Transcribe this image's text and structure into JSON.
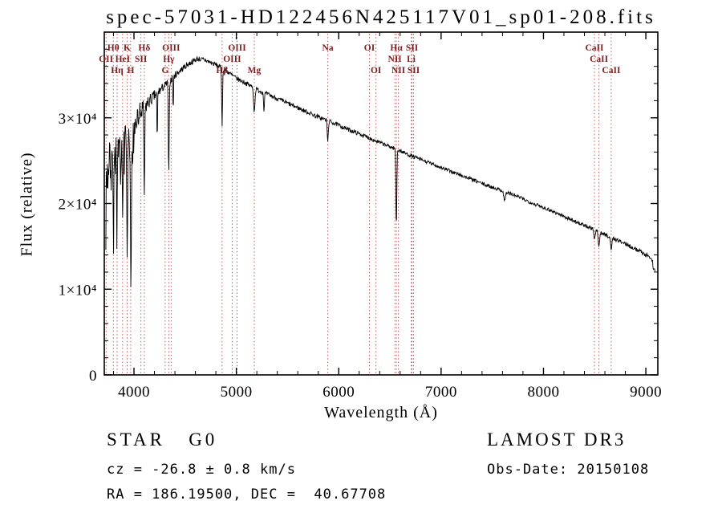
{
  "footer": {
    "object_class": "STAR   G0",
    "survey": "LAMOST DR3",
    "cz": "cz = -26.8 ± 0.8 km/s",
    "obs_date": "Obs-Date: 20150108",
    "coords": "RA = 186.19500, DEC =  40.67708"
  },
  "chart_data": {
    "type": "line",
    "title": "spec-57031-HD122456N425117V01_sp01-208.fits",
    "xlabel": "Wavelength (Å)",
    "ylabel": "Flux (relative)",
    "xlim": [
      3710,
      9117
    ],
    "ylim": [
      0,
      40000
    ],
    "xticks": [
      4000,
      5000,
      6000,
      7000,
      8000,
      9000
    ],
    "x_minor_step": 200,
    "yticks": [
      0,
      10000,
      20000,
      30000
    ],
    "ytick_labels": [
      "0",
      "1×10⁴",
      "2×10⁴",
      "3×10⁴"
    ],
    "y_minor_step": 2000,
    "grid": false,
    "line_color": "#000000",
    "frame_color": "#000000",
    "marker_line_color": "#bb4a4a",
    "marker_label_color": "#7a1f1f",
    "spectral_lines": [
      {
        "label": "OII",
        "wavelength": 3727,
        "row": 2
      },
      {
        "label": "Hθ",
        "wavelength": 3798,
        "row": 1
      },
      {
        "label": "Hη",
        "wavelength": 3835,
        "row": 3
      },
      {
        "label": "HeI",
        "wavelength": 3889,
        "row": 2
      },
      {
        "label": "K",
        "wavelength": 3933,
        "row": 1
      },
      {
        "label": "H",
        "wavelength": 3968,
        "row": 3
      },
      {
        "label": "SII",
        "wavelength": 4068,
        "row": 2
      },
      {
        "label": "Hδ",
        "wavelength": 4101,
        "row": 1
      },
      {
        "label": "G",
        "wavelength": 4305,
        "row": 3
      },
      {
        "label": "Hγ",
        "wavelength": 4340,
        "row": 2
      },
      {
        "label": "OIII",
        "wavelength": 4363,
        "row": 1
      },
      {
        "label": "Hβ",
        "wavelength": 4861,
        "row": 3
      },
      {
        "label": "OIII",
        "wavelength": 4959,
        "row": 2
      },
      {
        "label": "OIII",
        "wavelength": 5007,
        "row": 1
      },
      {
        "label": "Mg",
        "wavelength": 5175,
        "row": 3
      },
      {
        "label": "Na",
        "wavelength": 5893,
        "row": 1
      },
      {
        "label": "OI",
        "wavelength": 6300,
        "row": 1
      },
      {
        "label": "OI",
        "wavelength": 6364,
        "row": 3
      },
      {
        "label": "NII",
        "wavelength": 6548,
        "row": 2
      },
      {
        "label": "Hα",
        "wavelength": 6563,
        "row": 1
      },
      {
        "label": "NII",
        "wavelength": 6583,
        "row": 3
      },
      {
        "label": "Li",
        "wavelength": 6708,
        "row": 2
      },
      {
        "label": "SII",
        "wavelength": 6716,
        "row": 1
      },
      {
        "label": "SII",
        "wavelength": 6731,
        "row": 3
      },
      {
        "label": "CaII",
        "wavelength": 8498,
        "row": 1
      },
      {
        "label": "CaII",
        "wavelength": 8542,
        "row": 2
      },
      {
        "label": "CaII",
        "wavelength": 8662,
        "row": 3
      }
    ],
    "continuum": {
      "x": [
        3725,
        3770,
        3820,
        3870,
        3920,
        3970,
        4020,
        4080,
        4140,
        4220,
        4320,
        4420,
        4520,
        4620,
        4700,
        4800,
        4900,
        5000,
        5100,
        5200,
        5350,
        5500,
        5650,
        5800,
        5950,
        6100,
        6250,
        6400,
        6550,
        6700,
        6850,
        7000,
        7150,
        7300,
        7450,
        7600,
        7750,
        7900,
        8050,
        8200,
        8350,
        8500,
        8650,
        8800,
        8950,
        9040,
        9065,
        9072,
        9090
      ],
      "y": [
        22500,
        25000,
        25500,
        25000,
        26500,
        26000,
        29500,
        30800,
        31800,
        32800,
        34000,
        35200,
        36200,
        36900,
        36700,
        36200,
        35500,
        34600,
        34000,
        33300,
        32500,
        31700,
        30900,
        30100,
        29400,
        28600,
        27900,
        27100,
        26400,
        25600,
        24900,
        24200,
        23500,
        22800,
        22100,
        21500,
        20800,
        20000,
        19300,
        18500,
        17700,
        16900,
        16100,
        15300,
        14400,
        13700,
        13400,
        12400,
        12200
      ]
    },
    "absorption_features": [
      {
        "wavelength": 3798,
        "depth": 6000,
        "width": 5
      },
      {
        "wavelength": 3835,
        "depth": 7000,
        "width": 5
      },
      {
        "wavelength": 3889,
        "depth": 8000,
        "width": 5
      },
      {
        "wavelength": 3933,
        "depth": 13000,
        "width": 6
      },
      {
        "wavelength": 3970,
        "depth": 16500,
        "width": 6
      },
      {
        "wavelength": 4101,
        "depth": 10000,
        "width": 6
      },
      {
        "wavelength": 4227,
        "depth": 6000,
        "width": 4
      },
      {
        "wavelength": 4340,
        "depth": 11000,
        "width": 6
      },
      {
        "wavelength": 4383,
        "depth": 4000,
        "width": 4
      },
      {
        "wavelength": 4861,
        "depth": 6500,
        "width": 6
      },
      {
        "wavelength": 5175,
        "depth": 2800,
        "width": 9
      },
      {
        "wavelength": 5270,
        "depth": 2000,
        "width": 6
      },
      {
        "wavelength": 5893,
        "depth": 2500,
        "width": 7
      },
      {
        "wavelength": 6563,
        "depth": 9200,
        "width": 6
      },
      {
        "wavelength": 7620,
        "depth": 1000,
        "width": 12
      },
      {
        "wavelength": 8498,
        "depth": 1200,
        "width": 8
      },
      {
        "wavelength": 8542,
        "depth": 1600,
        "width": 9
      },
      {
        "wavelength": 8662,
        "depth": 1400,
        "width": 9
      }
    ],
    "noise_profile": {
      "x": [
        3725,
        3800,
        3900,
        3990,
        4060,
        4150,
        4300,
        4600,
        5000,
        5600,
        6200,
        7000,
        8000,
        8800,
        9090
      ],
      "amp": [
        2600,
        2900,
        2800,
        2400,
        1500,
        800,
        450,
        320,
        280,
        260,
        240,
        220,
        210,
        230,
        260
      ]
    },
    "seed": 7
  }
}
